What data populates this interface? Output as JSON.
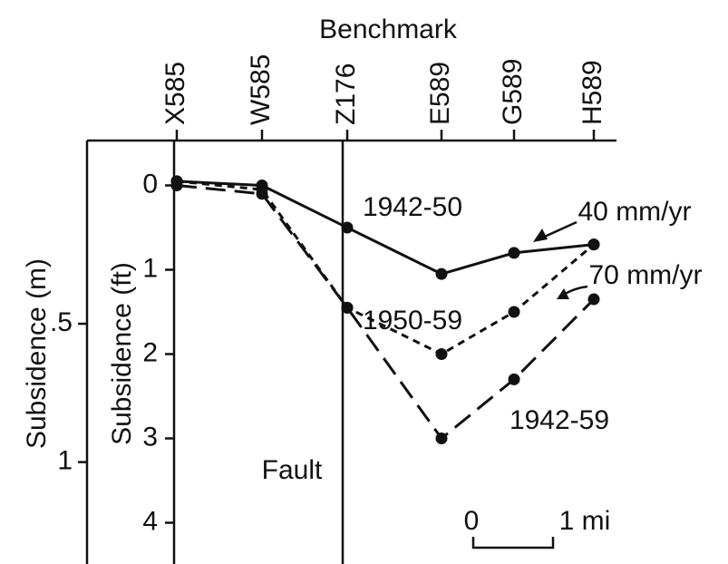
{
  "chart_data": {
    "type": "line",
    "title": "Benchmark",
    "categories": [
      "X585",
      "W585",
      "Z176",
      "E589",
      "G589",
      "H589"
    ],
    "series": [
      {
        "name": "1942-50",
        "color": "#111111",
        "dash": "solid",
        "values": [
          -0.05,
          0,
          0.5,
          1.05,
          0.8,
          0.7
        ]
      },
      {
        "name": "1950-59",
        "color": "#111111",
        "dash": "short",
        "values": [
          -0.05,
          0.05,
          1.45,
          2.0,
          1.5,
          0.7
        ]
      },
      {
        "name": "1942-59",
        "color": "#111111",
        "dash": "long",
        "values": [
          0,
          0.1,
          1.45,
          3.0,
          2.3,
          1.35
        ]
      }
    ],
    "ylabel": "Subsidence (ft)",
    "ylim": [
      -0.5,
      4.5
    ],
    "yticks": [
      0,
      1,
      2,
      3,
      4
    ],
    "y2label": "Subsidence (m)",
    "y2lim": [
      -0.1524,
      1.3716
    ],
    "y2ticks": [
      {
        "value": 0.5,
        "label": ".5"
      },
      1
    ],
    "annotations": [
      "40 mm/yr",
      "70 mm/yr",
      "Fault",
      "0",
      "1 mi"
    ]
  }
}
